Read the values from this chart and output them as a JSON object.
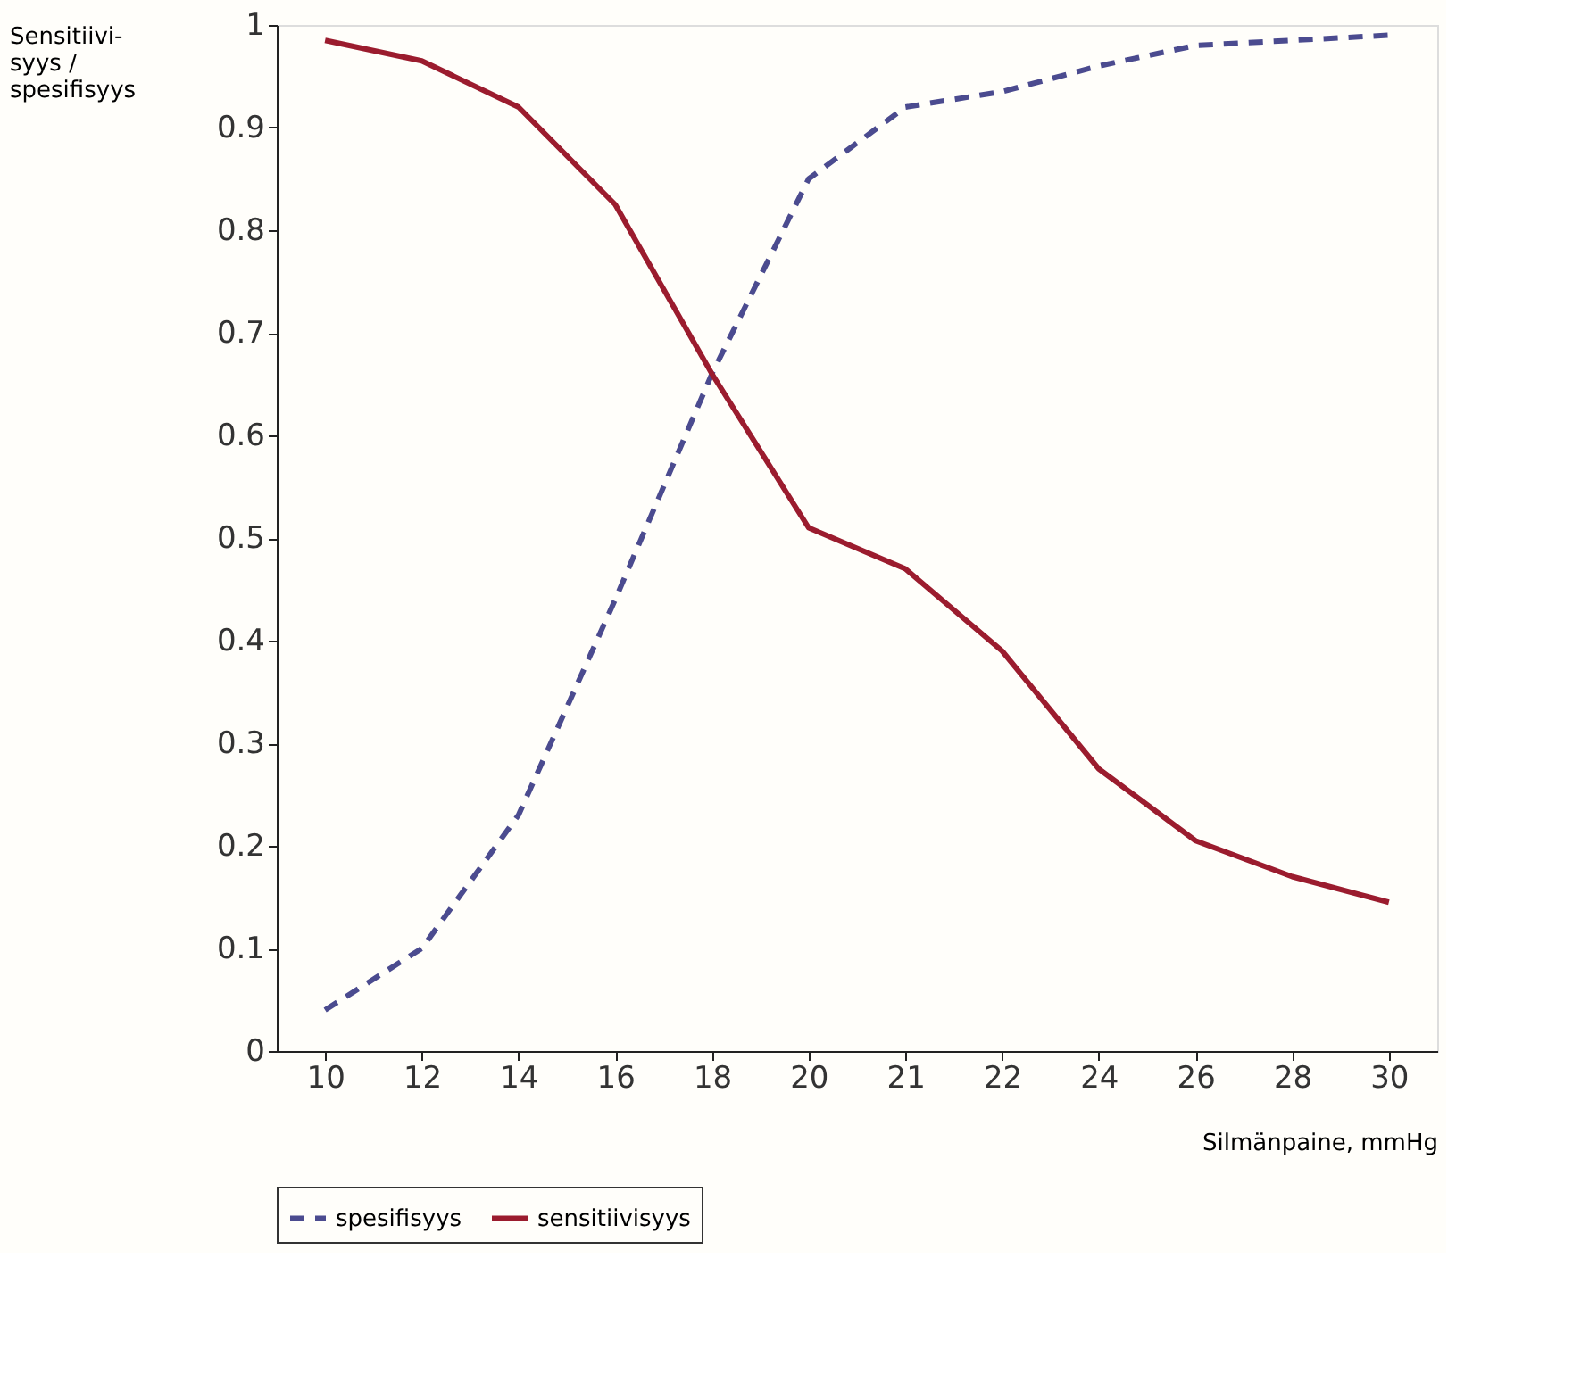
{
  "chart_data": {
    "type": "line",
    "ylabel": "Sensitiivi-\nsyys /\nspesifisyys",
    "xlabel": "Silmänpaine, mmHg",
    "categories": [
      "10",
      "12",
      "14",
      "16",
      "18",
      "20",
      "21",
      "22",
      "24",
      "26",
      "28",
      "30"
    ],
    "series": [
      {
        "name": "spesifisyys",
        "color": "#4b4b8f",
        "line_style": "dashed",
        "values": [
          0.04,
          0.1,
          0.23,
          0.44,
          0.66,
          0.85,
          0.92,
          0.935,
          0.96,
          0.98,
          0.985,
          0.99
        ]
      },
      {
        "name": "sensitiivisyys",
        "color": "#9b1c2e",
        "line_style": "solid",
        "values": [
          0.985,
          0.965,
          0.92,
          0.825,
          0.66,
          0.51,
          0.47,
          0.39,
          0.275,
          0.205,
          0.17,
          0.145
        ]
      }
    ],
    "ylim": [
      0,
      1
    ],
    "yticks": [
      0,
      0.1,
      0.2,
      0.3,
      0.4,
      0.5,
      0.6,
      0.7,
      0.8,
      0.9,
      1
    ],
    "grid": false,
    "legend": "bottom",
    "marker": "none"
  }
}
